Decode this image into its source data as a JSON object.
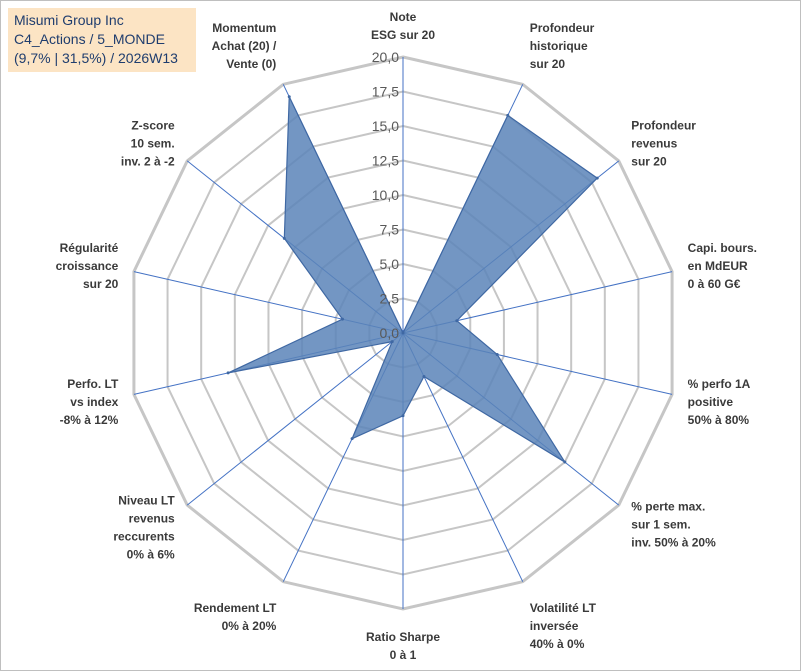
{
  "header": {
    "line1": "Misumi Group Inc",
    "line2": "C4_Actions / 5_MONDE",
    "line3": "(9,7% | 31,5%) / 2026W13"
  },
  "colors": {
    "fill": "#5b84b8",
    "stroke": "#3f68a3",
    "spoke": "#4472c4",
    "grid": "#c6c6c6",
    "title_box": "#fce4c4"
  },
  "chart_data": {
    "type": "radar",
    "rmin": 0,
    "rmax": 20,
    "tick_step": 2.5,
    "tick_labels": [
      "0,0",
      "2,5",
      "5,0",
      "7,5",
      "10,0",
      "12,5",
      "15,0",
      "17,5",
      "20,0"
    ],
    "axes": [
      {
        "lines": [
          "Note",
          "ESG sur 20"
        ]
      },
      {
        "lines": [
          "Profondeur",
          "historique",
          "sur 20"
        ]
      },
      {
        "lines": [
          "Profondeur",
          "revenus",
          "sur 20"
        ]
      },
      {
        "lines": [
          "Capi. bours.",
          "en MdEUR",
          "0 à 60 G€"
        ]
      },
      {
        "lines": [
          "% perfo 1A",
          "positive",
          "50% à 80%"
        ]
      },
      {
        "lines": [
          "% perte max.",
          "sur 1 sem.",
          "inv. 50% à 20%"
        ]
      },
      {
        "lines": [
          "Volatilité LT",
          "inversée",
          "40% à 0%"
        ]
      },
      {
        "lines": [
          "Ratio Sharpe",
          "0 à 1"
        ]
      },
      {
        "lines": [
          "Rendement LT",
          "0% à 20%"
        ]
      },
      {
        "lines": [
          "Niveau LT",
          "revenus",
          "reccurents",
          "0% à 6%"
        ]
      },
      {
        "lines": [
          "Perfo. LT",
          "vs index",
          "-8% à 12%"
        ]
      },
      {
        "lines": [
          "Régularité",
          "croissance",
          "sur 20"
        ]
      },
      {
        "lines": [
          "Z-score",
          "10 sem.",
          "inv. 2 à -2"
        ]
      },
      {
        "lines": [
          "Momentum",
          "Achat (20) /",
          "Vente (0)"
        ]
      }
    ],
    "series": [
      {
        "values": [
          0,
          17.5,
          18.0,
          4.0,
          7.0,
          15.0,
          3.5,
          6.0,
          8.5,
          1.0,
          13.0,
          4.5,
          11.0,
          19.0
        ]
      }
    ],
    "grid": true,
    "legend": "none"
  }
}
